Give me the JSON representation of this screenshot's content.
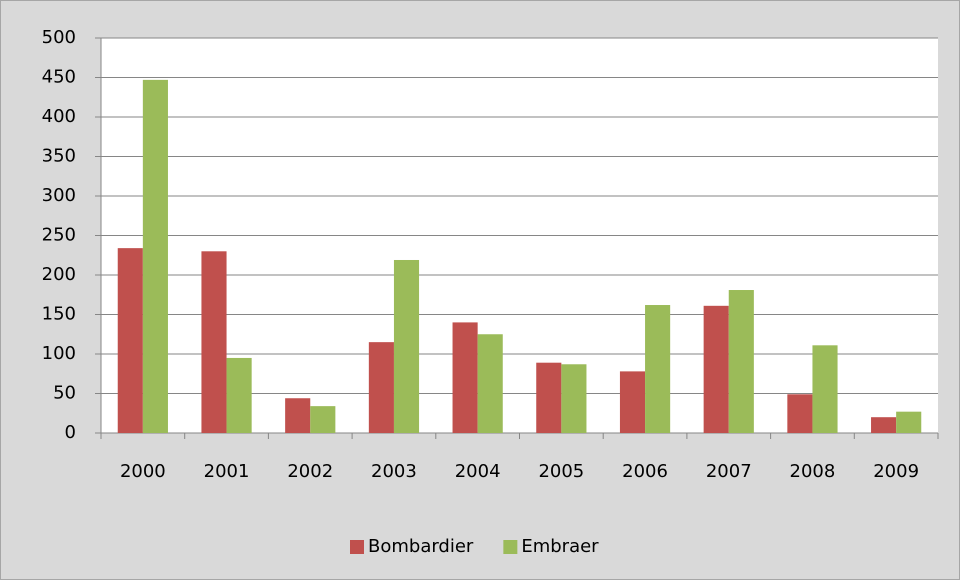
{
  "chart_data": {
    "type": "bar",
    "categories": [
      "2000",
      "2001",
      "2002",
      "2003",
      "2004",
      "2005",
      "2006",
      "2007",
      "2008",
      "2009"
    ],
    "series": [
      {
        "name": "Bombardier",
        "color": "#c0504d",
        "values": [
          234,
          230,
          44,
          115,
          140,
          89,
          78,
          161,
          49,
          20
        ]
      },
      {
        "name": "Embraer",
        "color": "#9bbb59",
        "values": [
          447,
          95,
          34,
          219,
          125,
          87,
          162,
          181,
          111,
          27
        ]
      }
    ],
    "ylim": [
      0,
      500
    ],
    "yticks": [
      0,
      50,
      100,
      150,
      200,
      250,
      300,
      350,
      400,
      450,
      500
    ],
    "grid": true,
    "legend": "bottom"
  }
}
